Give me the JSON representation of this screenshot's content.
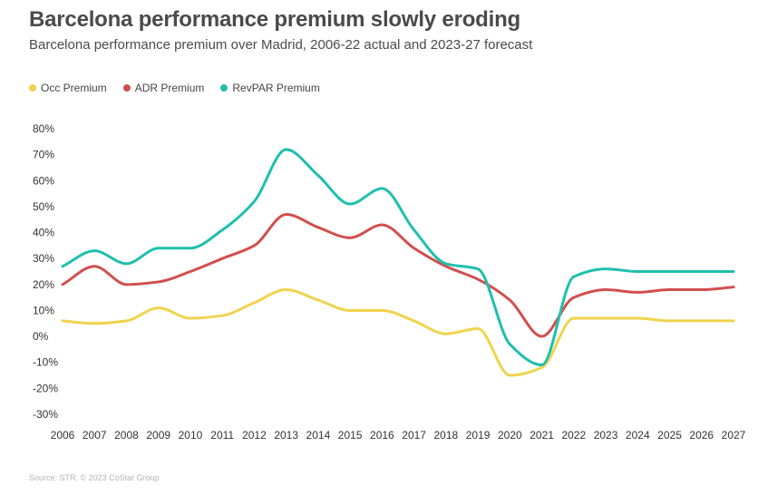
{
  "title": "Barcelona performance premium slowly eroding",
  "subtitle": "Barcelona performance premium over Madrid, 2006-22 actual and 2023-27 forecast",
  "source": "Source: STR. © 2023 CoStar Group",
  "chart_data": {
    "type": "line",
    "title": "Barcelona performance premium slowly eroding",
    "subtitle": "Barcelona performance premium over Madrid, 2006-22 actual and 2023-27 forecast",
    "xlabel": "",
    "ylabel": "",
    "x": [
      "2006",
      "2007",
      "2008",
      "2009",
      "2010",
      "2011",
      "2012",
      "2013",
      "2014",
      "2015",
      "2016",
      "2017",
      "2018",
      "2019",
      "2020",
      "2021",
      "2022",
      "2023",
      "2024",
      "2025",
      "2026",
      "2027"
    ],
    "ylim": [
      -30,
      80
    ],
    "yticks": [
      80,
      70,
      60,
      50,
      40,
      30,
      20,
      10,
      0,
      -10,
      -20,
      -30
    ],
    "ytick_labels": [
      "80%",
      "70%",
      "60%",
      "50%",
      "40%",
      "30%",
      "20%",
      "10%",
      "0%",
      "-10%",
      "-20%",
      "-30%"
    ],
    "grid": false,
    "legend_position": "top-left",
    "series": [
      {
        "name": "Occ Premium",
        "color": "#f0d34e",
        "values": [
          6,
          5,
          6,
          11,
          7,
          8,
          13,
          18,
          14,
          10,
          10,
          6,
          1,
          3,
          -15,
          -12,
          7,
          7,
          7,
          6,
          6,
          6
        ]
      },
      {
        "name": "ADR Premium",
        "color": "#d24e4e",
        "values": [
          20,
          27,
          20,
          21,
          25,
          30,
          35,
          47,
          42,
          38,
          43,
          34,
          27,
          22,
          14,
          0,
          15,
          18,
          17,
          18,
          18,
          19
        ]
      },
      {
        "name": "RevPAR Premium",
        "color": "#1fbfae",
        "values": [
          27,
          33,
          28,
          34,
          34,
          41,
          52,
          72,
          62,
          51,
          57,
          41,
          28,
          26,
          -3,
          -11,
          23,
          26,
          25,
          25,
          25,
          25
        ]
      }
    ]
  }
}
